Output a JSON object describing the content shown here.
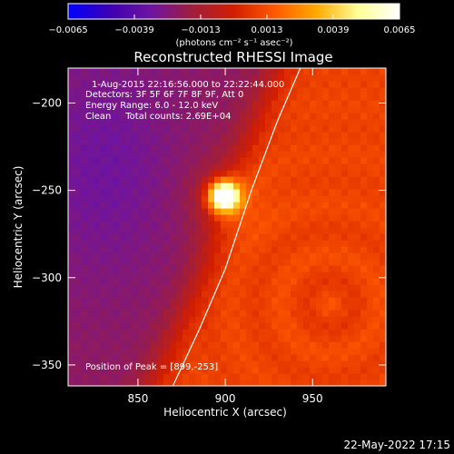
{
  "chart_data": {
    "type": "heatmap",
    "title": "Reconstructed RHESSI Image",
    "xlabel": "Heliocentric X (arcsec)",
    "ylabel": "Heliocentric Y (arcsec)",
    "xlim": [
      810,
      992
    ],
    "ylim": [
      -362,
      -180
    ],
    "xticks": [
      850,
      900,
      950
    ],
    "yticks": [
      -200,
      -250,
      -300,
      -350
    ],
    "xtick_labels": [
      "850",
      "900",
      "950"
    ],
    "ytick_labels": [
      "−200",
      "−250",
      "−300",
      "−350"
    ],
    "colorbar": {
      "min": -0.0065,
      "max": 0.0065,
      "ticks": [
        -0.0065,
        -0.0039,
        -0.0013,
        0.0013,
        0.0039,
        0.0065
      ],
      "tick_labels": [
        "−0.0065",
        "−0.0039",
        "−0.0013",
        "0.0013",
        "0.0039",
        "0.0065"
      ],
      "unit_label": "(photons cm⁻² s⁻¹ asec⁻²)",
      "colormap": [
        "#0000ff",
        "#3c00b4",
        "#6e14a0",
        "#a01e3c",
        "#d21e00",
        "#ff5a00",
        "#ffaa00",
        "#ffff96",
        "#ffffff"
      ]
    },
    "annotations": [
      "1-Aug-2015 22:16:56.000 to 22:22:44.000",
      "Detectors: 3F 5F 6F 7F 8F 9F, Att 0",
      "Energy Range: 6.0 - 12.0 keV",
      "Clean     Total counts: 2.69E+04",
      "Position of Peak = [899,-253]"
    ],
    "peak": {
      "x": 899,
      "y": -253,
      "value": 0.0065
    },
    "limb": {
      "type": "line",
      "points": [
        [
          870,
          -362
        ],
        [
          885,
          -330
        ],
        [
          900,
          -295
        ],
        [
          915,
          -250
        ],
        [
          930,
          -210
        ],
        [
          943,
          -180
        ]
      ]
    },
    "grid": false
  },
  "footer": {
    "timestamp": "22-May-2022 17:15"
  }
}
